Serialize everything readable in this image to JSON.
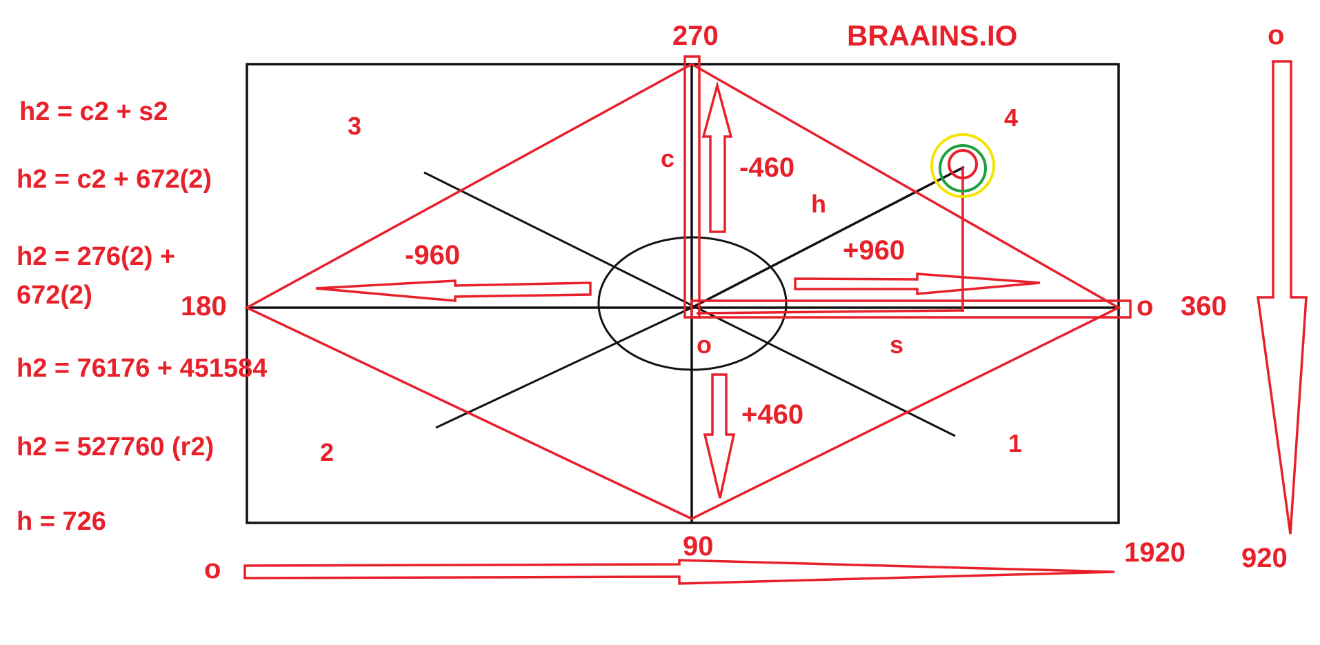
{
  "title": "BRAAINS.IO",
  "angles": {
    "top": "270",
    "left": "180",
    "bottom": "90",
    "right_zero": "o",
    "right": "360"
  },
  "quadrants": {
    "q1": "1",
    "q2": "2",
    "q3": "3",
    "q4": "4"
  },
  "triangle": {
    "c": "c",
    "h": "h",
    "s": "s",
    "origin": "o"
  },
  "offsets": {
    "up": "-460",
    "down": "+460",
    "left": "-960",
    "right": "+960"
  },
  "axes": {
    "x_start": "o",
    "x_end": "1920",
    "y_start": "o",
    "y_end": "920"
  },
  "equations": [
    "h2 = c2 + s2",
    "h2 = c2 + 672(2)",
    "h2 = 276(2) +",
    "672(2)",
    "h2 = 76176 + 451584",
    "h2 = 527760 (r2)",
    "h = 726"
  ],
  "colors": {
    "accent": "#e8202a",
    "ink": "#111111",
    "ring_outer": "#f5e400",
    "ring_middle": "#1fa040"
  }
}
